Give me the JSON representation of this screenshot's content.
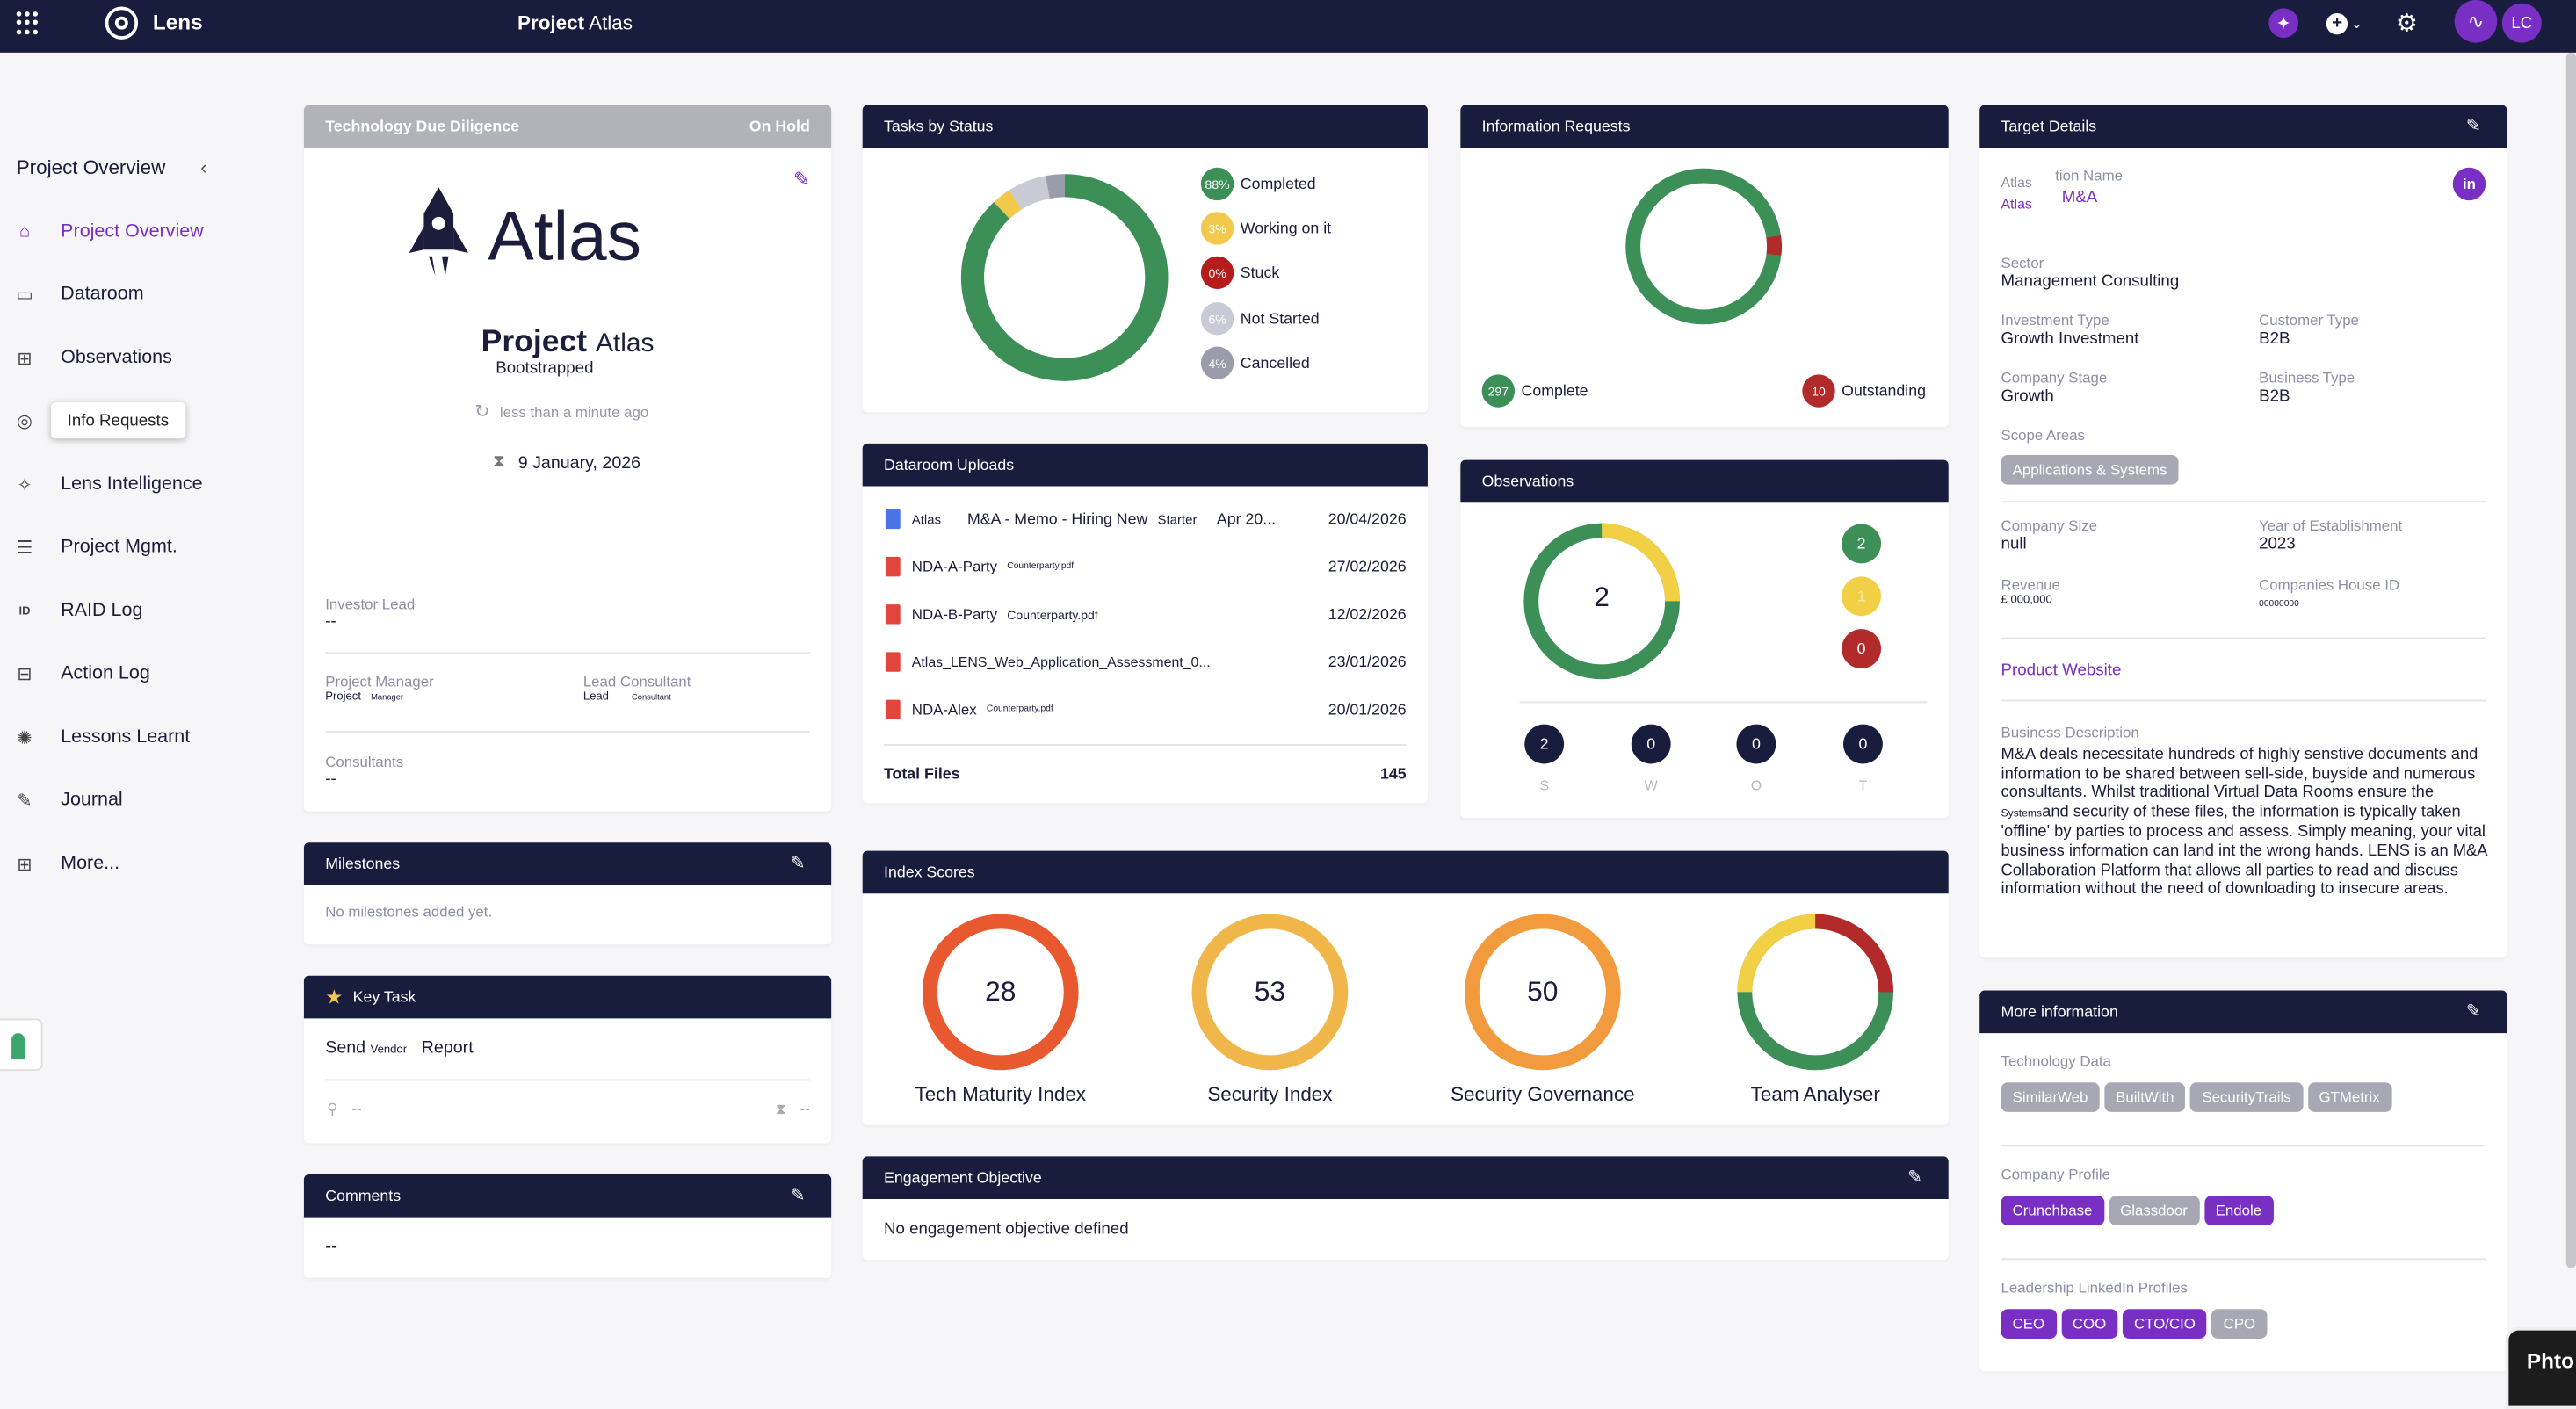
{
  "topbar": {
    "app_name": "Lens",
    "project_prefix": "Project",
    "project_name": "Atlas",
    "avatar_initials": "LC"
  },
  "sidebar": {
    "header": "Project Overview",
    "items": [
      {
        "label": "Project Overview",
        "icon": "home-icon",
        "active": true
      },
      {
        "label": "Dataroom",
        "icon": "folder-icon"
      },
      {
        "label": "Observations",
        "icon": "table-icon"
      },
      {
        "label": "Info Requests",
        "icon": "chat-search-icon"
      },
      {
        "label": "Lens Intelligence",
        "icon": "sparkle-icon"
      },
      {
        "label": "Project Mgmt.",
        "icon": "list-icon"
      },
      {
        "label": "RAID Log",
        "icon": "raid-icon"
      },
      {
        "label": "Action Log",
        "icon": "action-icon"
      },
      {
        "label": "Lessons Learnt",
        "icon": "bulb-icon"
      },
      {
        "label": "Journal",
        "icon": "journal-icon"
      },
      {
        "label": "More...",
        "icon": "grid-icon"
      }
    ],
    "tooltip": "Info Requests"
  },
  "project_card": {
    "header": "Technology Due Diligence",
    "status": "On Hold",
    "logo_text": "Atlas",
    "title_bold": "Project",
    "title_name": "Atlas",
    "subtitle": "Bootstrapped",
    "updated": "less than a minute ago",
    "date": "9 January, 2026",
    "investor_lead_label": "Investor Lead",
    "investor_lead_value": "--",
    "pm_label": "Project Manager",
    "pm_value_a": "Project",
    "pm_value_b": "Manager",
    "lc_label": "Lead Consultant",
    "lc_value_a": "Lead",
    "lc_value_b": "Consultant",
    "consultants_label": "Consultants",
    "consultants_value": "--"
  },
  "milestones": {
    "header": "Milestones",
    "empty": "No milestones added yet."
  },
  "key_task": {
    "header": "Key Task",
    "task_a": "Send",
    "task_b": "Vendor",
    "task_c": "Report",
    "assignee": "--",
    "due": "--"
  },
  "comments": {
    "header": "Comments",
    "value": "--"
  },
  "tasks": {
    "header": "Tasks by Status",
    "legend": [
      {
        "pct": "88%",
        "label": "Completed",
        "color": "#3c8f57"
      },
      {
        "pct": "3%",
        "label": "Working on it",
        "color": "#f2c94c"
      },
      {
        "pct": "0%",
        "label": "Stuck",
        "color": "#b71c1c"
      },
      {
        "pct": "6%",
        "label": "Not Started",
        "color": "#c9cad6"
      },
      {
        "pct": "4%",
        "label": "Cancelled",
        "color": "#9a9bab"
      }
    ]
  },
  "dataroom": {
    "header": "Dataroom Uploads",
    "files": [
      {
        "a": "Atlas",
        "b": "M&A - Memo - Hiring New",
        "c": "Starter",
        "d": "Apr 20...",
        "date": "20/04/2026",
        "type": "doc"
      },
      {
        "a": "NDA-A-Party",
        "b": "Counterparty.pdf",
        "date": "27/02/2026",
        "type": "pdf"
      },
      {
        "a": "NDA-B-Party",
        "b": "Counterparty.pdf",
        "date": "12/02/2026",
        "type": "pdf"
      },
      {
        "a": "Atlas_LENS_Web_Application_Assessment_0...",
        "date": "23/01/2026",
        "type": "pdf"
      },
      {
        "a": "NDA-Alex",
        "b": "Counterparty.pdf",
        "date": "20/01/2026",
        "type": "pdf"
      }
    ],
    "total_label": "Total Files",
    "total_value": "145"
  },
  "index_scores": {
    "header": "Index Scores",
    "items": [
      {
        "label": "Tech Maturity Index",
        "value": "28"
      },
      {
        "label": "Security Index",
        "value": "53"
      },
      {
        "label": "Security Governance",
        "value": "50"
      },
      {
        "label": "Team Analyser",
        "value": ""
      }
    ]
  },
  "engagement": {
    "header": "Engagement Objective",
    "value": "No engagement objective defined"
  },
  "info_requests": {
    "header": "Information Requests",
    "complete_count": "297",
    "complete_label": "Complete",
    "outstanding_count": "10",
    "outstanding_label": "Outstanding"
  },
  "observations": {
    "header": "Observations",
    "center": "2",
    "side": [
      "2",
      "1",
      "0"
    ],
    "bottom": [
      {
        "v": "2",
        "l": "S"
      },
      {
        "v": "0",
        "l": "W"
      },
      {
        "v": "0",
        "l": "O"
      },
      {
        "v": "0",
        "l": "T"
      }
    ]
  },
  "target": {
    "header": "Target Details",
    "org_stack_a": "Atlas",
    "org_stack_b": "Atlas",
    "org_label": "tion Name",
    "org_value": "M&A",
    "sector_label": "Sector",
    "sector_value": "Management Consulting",
    "inv_type_label": "Investment Type",
    "inv_type_value": "Growth Investment",
    "cust_type_label": "Customer Type",
    "cust_type_value": "B2B",
    "stage_label": "Company Stage",
    "stage_value": "Growth",
    "biz_type_label": "Business Type",
    "biz_type_value": "B2B",
    "scope_label": "Scope Areas",
    "scope_chip": "Applications & Systems",
    "size_label": "Company Size",
    "size_value": "null",
    "year_label": "Year of Establishment",
    "year_value": "2023",
    "revenue_label": "Revenue",
    "revenue_value": "£ 000,000",
    "ch_label": "Companies House ID",
    "ch_value": "00000000",
    "website_link": "Product Website",
    "desc_label": "Business Description",
    "desc_1": "M&A deals necessitate hundreds of highly senstive documents and information to be shared between sell-side, buyside and numerous consultants. Whilst traditional Virtual Data Rooms ensure the ",
    "desc_small": "Systems",
    "desc_2": "and security of these files, the information is typically taken 'offline' by parties to process and assess. Simply meaning, your vital business information can land int the wrong hands. LENS is an M&A Collaboration Platform that allows all parties to read and discuss information without the need of downloading to insecure areas."
  },
  "more_info": {
    "header": "More information",
    "tech_label": "Technology Data",
    "tech_chips": [
      "SimilarWeb",
      "BuiltWith",
      "SecurityTrails",
      "GTMetrix"
    ],
    "profile_label": "Company Profile",
    "profile_chips": [
      {
        "t": "Crunchbase",
        "c": "p"
      },
      {
        "t": "Glassdoor",
        "c": "g"
      },
      {
        "t": "Endole",
        "c": "p"
      }
    ],
    "leaders_label": "Leadership LinkedIn Profiles",
    "leader_chips": [
      {
        "t": "CEO",
        "c": "p"
      },
      {
        "t": "COO",
        "c": "p"
      },
      {
        "t": "CTO/CIO",
        "c": "p"
      },
      {
        "t": "CPO",
        "c": "g"
      }
    ]
  },
  "photo_badge": "Phto"
}
